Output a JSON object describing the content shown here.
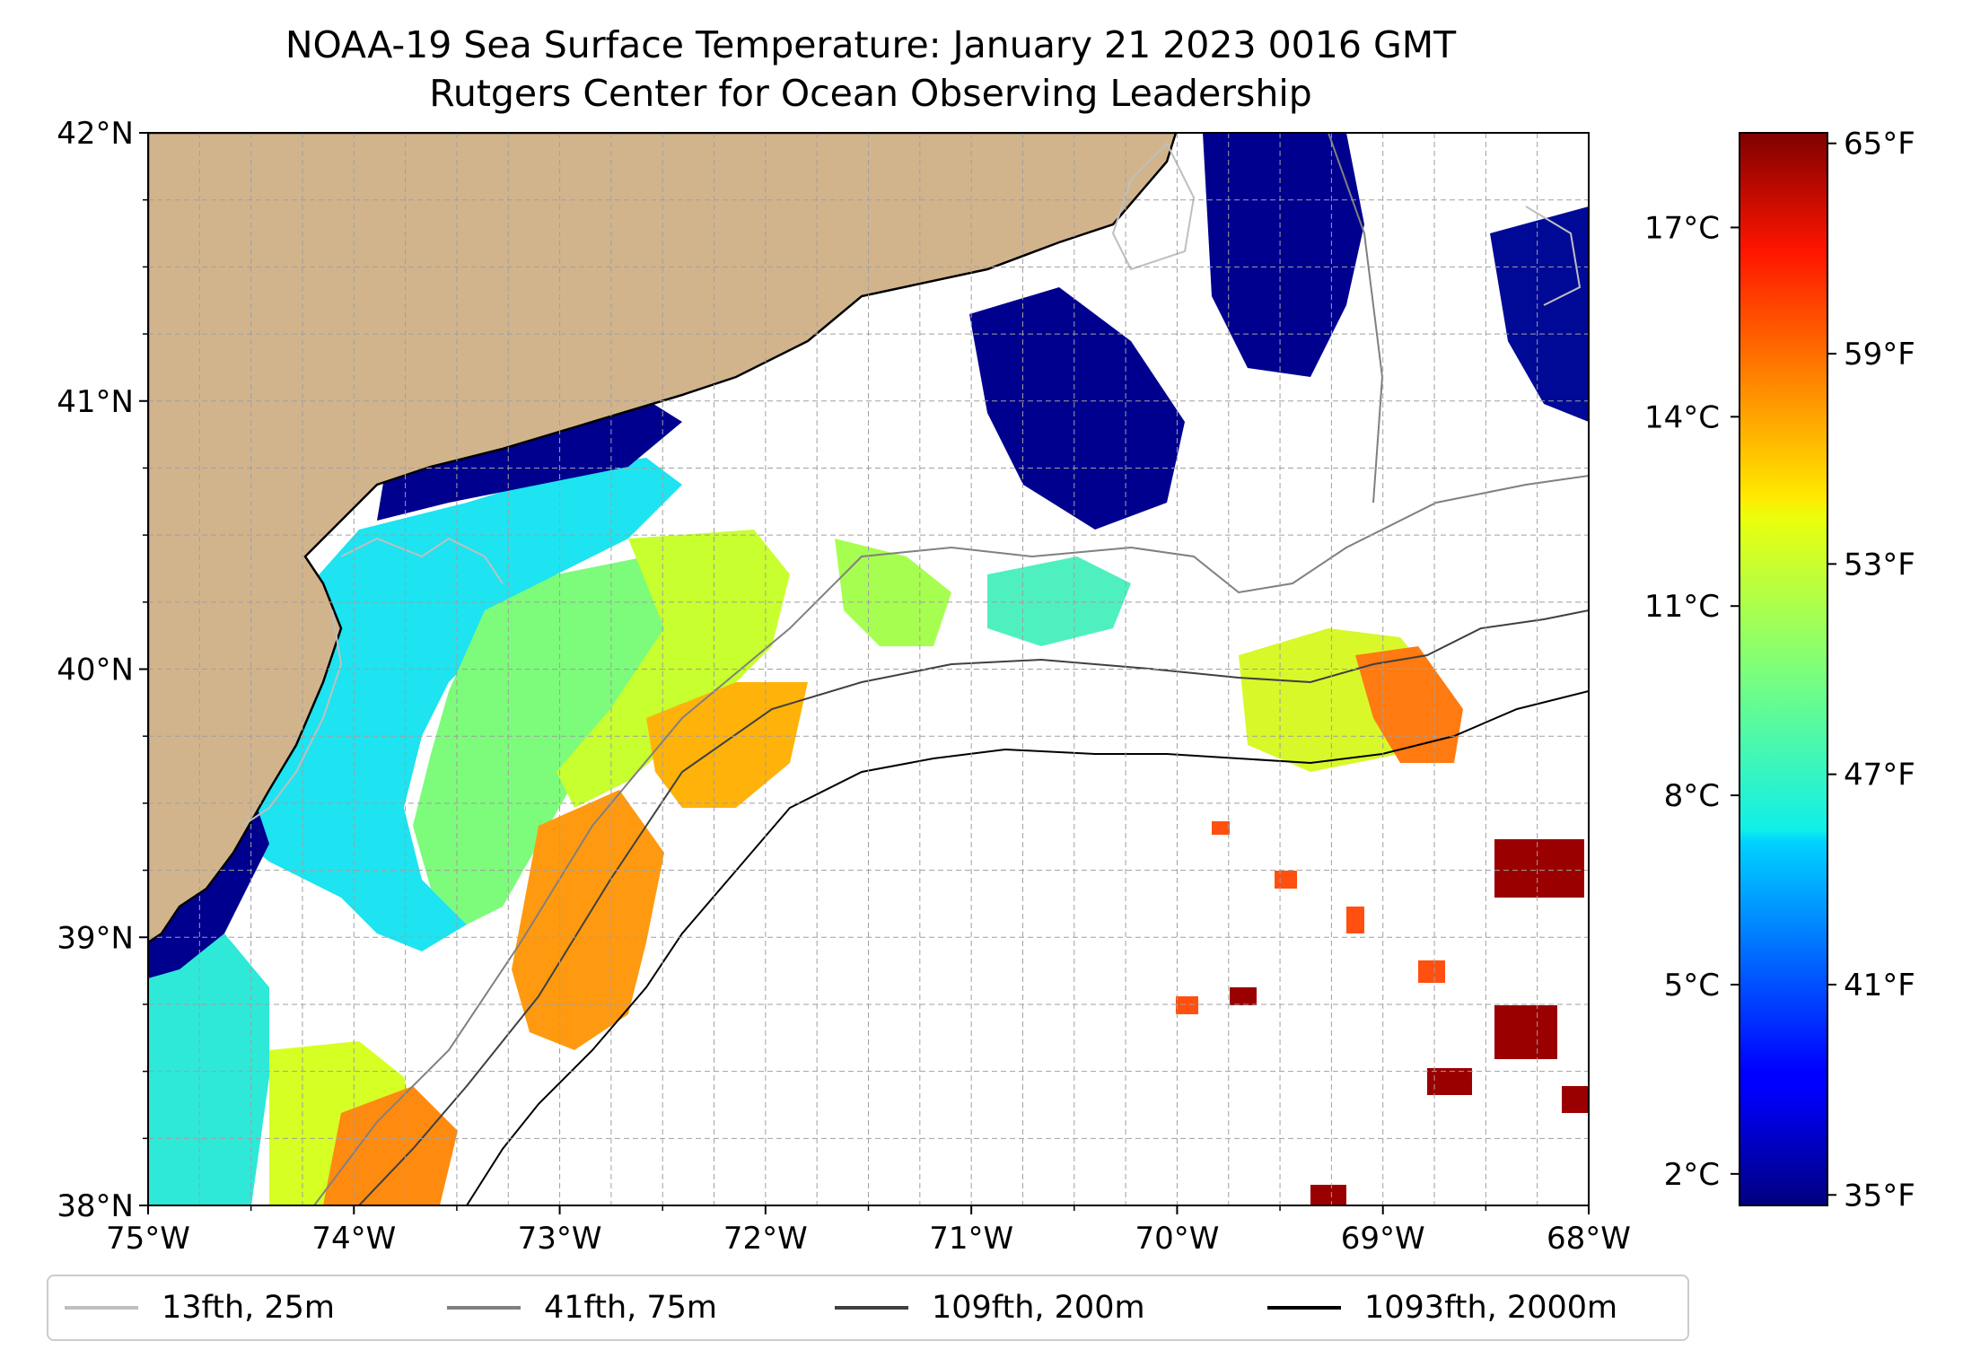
{
  "chart_data": {
    "type": "heatmap",
    "title": "NOAA-19 Sea Surface Temperature: January 21 2023 0016 GMT",
    "subtitle": "Rutgers Center for Ocean Observing Leadership",
    "xlim": [
      -75,
      -68
    ],
    "ylim": [
      38,
      42
    ],
    "x_ticks": [
      "75°W",
      "74°W",
      "73°W",
      "72°W",
      "71°W",
      "70°W",
      "69°W",
      "68°W"
    ],
    "y_ticks": [
      "38°N",
      "39°N",
      "40°N",
      "41°N",
      "42°N"
    ],
    "grid": true,
    "colorbar": {
      "colormap": "jet",
      "range_c": [
        1.5,
        18.5
      ],
      "celsius_ticks": [
        "2°C",
        "5°C",
        "8°C",
        "11°C",
        "14°C",
        "17°C"
      ],
      "celsius_values": [
        2,
        5,
        8,
        11,
        14,
        17
      ],
      "fahrenheit_ticks": [
        "35°F",
        "41°F",
        "47°F",
        "53°F",
        "59°F",
        "65°F"
      ],
      "fahrenheit_values": [
        35,
        41,
        47,
        53,
        59,
        65
      ]
    },
    "legend": {
      "placement": "bottom",
      "entries": [
        {
          "label": "13fth, 25m",
          "color": "#bfbfbf"
        },
        {
          "label": "41fth, 75m",
          "color": "#808080"
        },
        {
          "label": "109fth, 200m",
          "color": "#404040"
        },
        {
          "label": "1093fth, 2000m",
          "color": "#000000"
        }
      ]
    },
    "colors": {
      "land": "#d2b48c",
      "no_data": "#ffffff",
      "coastline": "#000000"
    }
  }
}
